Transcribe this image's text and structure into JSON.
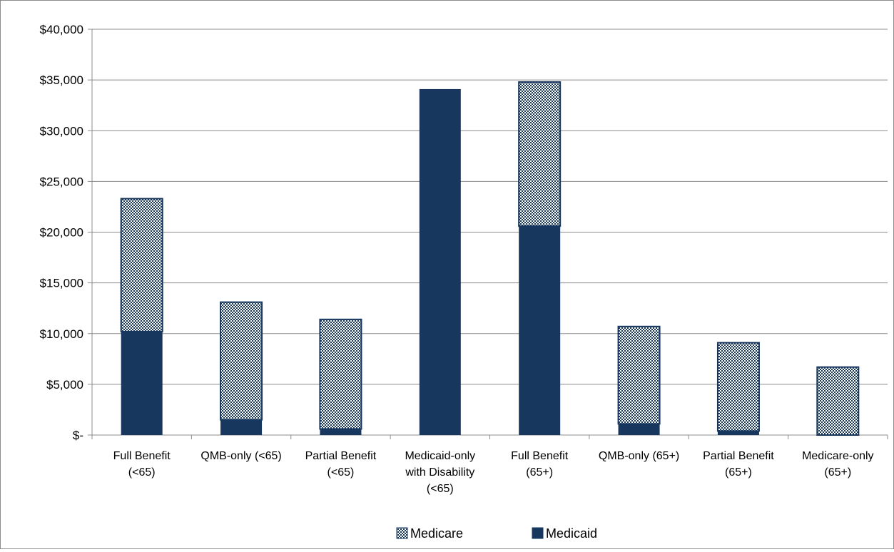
{
  "chart_data": {
    "type": "bar",
    "stacked": true,
    "title": "",
    "xlabel": "",
    "ylabel": "",
    "ylim": [
      0,
      40000
    ],
    "yticks": [
      0,
      5000,
      10000,
      15000,
      20000,
      25000,
      30000,
      35000,
      40000
    ],
    "ytick_labels": [
      "$-",
      "$5,000",
      "$10,000",
      "$15,000",
      "$20,000",
      "$25,000",
      "$30,000",
      "$35,000",
      "$40,000"
    ],
    "grid": true,
    "legend_position": "bottom",
    "categories": [
      [
        "Full Benefit",
        "(<65)"
      ],
      [
        "QMB-only (<65)"
      ],
      [
        "Partial Benefit",
        "(<65)"
      ],
      [
        "Medicaid-only",
        "with Disability",
        "(<65)"
      ],
      [
        "Full Benefit",
        "(65+)"
      ],
      [
        "QMB-only (65+)"
      ],
      [
        "Partial Benefit",
        "(65+)"
      ],
      [
        "Medicare-only",
        "(65+)"
      ]
    ],
    "series": [
      {
        "name": "Medicaid",
        "color": "#17375e",
        "pattern": "solid",
        "values": [
          10200,
          1500,
          600,
          34100,
          20600,
          1100,
          400,
          0
        ]
      },
      {
        "name": "Medicare",
        "color": "#17375e",
        "pattern": "dotted",
        "values": [
          13100,
          11600,
          10800,
          0,
          14200,
          9600,
          8700,
          6700
        ]
      }
    ],
    "legend_order": [
      "Medicare",
      "Medicaid"
    ]
  }
}
